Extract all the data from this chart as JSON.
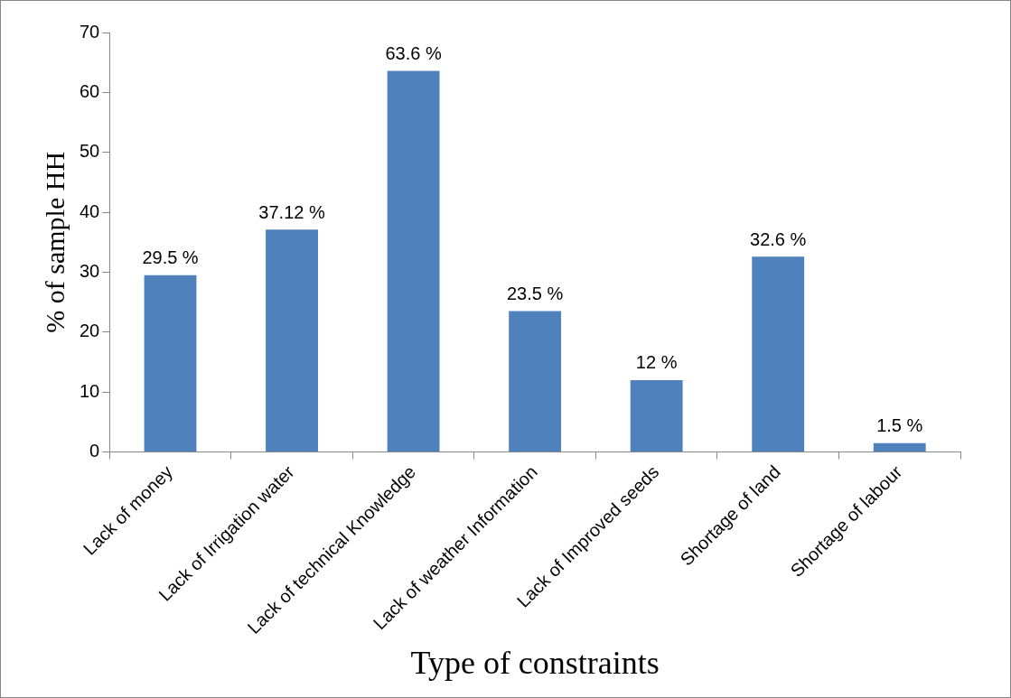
{
  "chart_data": {
    "type": "bar",
    "xlabel": "Type of constraints",
    "ylabel": "% of sample HH",
    "categories": [
      "Lack of money",
      "Lack of Irrigation water",
      "Lack of technical Knowledge",
      "Lack of weather Information",
      "Lack of Improved seeds",
      "Shortage of land",
      "Shortage of labour"
    ],
    "values": [
      29.5,
      37.12,
      63.6,
      23.5,
      12,
      32.6,
      1.5
    ],
    "value_labels": [
      "29.5 %",
      "37.12 %",
      "63.6 %",
      "23.5 %",
      "12 %",
      "32.6 %",
      "1.5 %"
    ],
    "color": "#4f81bd",
    "ylim": [
      0,
      70
    ],
    "yticks": [
      0,
      10,
      20,
      30,
      40,
      50,
      60,
      70
    ],
    "grid": false,
    "legend": false
  }
}
